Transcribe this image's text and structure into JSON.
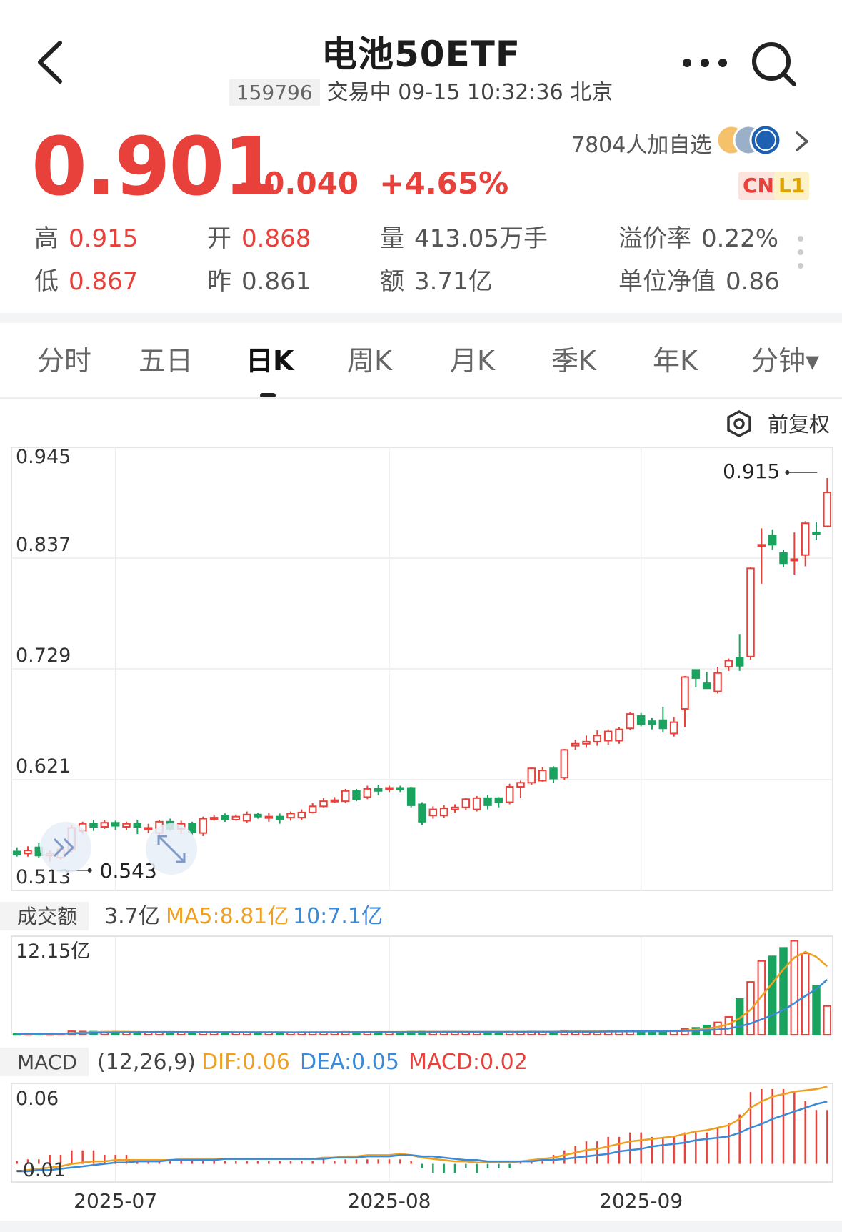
{
  "header": {
    "title": "电池50ETF",
    "code": "159796",
    "status_line": "交易中 09-15 10:32:36 北京"
  },
  "quote": {
    "price": "0.901",
    "change": "+0.040",
    "change_pct": "+4.65%",
    "followers": "7804人加自选",
    "tag_cn": "CN",
    "tag_l1": "L1",
    "stats": {
      "high_label": "高",
      "high": "0.915",
      "open_label": "开",
      "open": "0.868",
      "vol_label": "量",
      "vol": "413.05万手",
      "prem_label": "溢价率",
      "prem": "0.22%",
      "low_label": "低",
      "low": "0.867",
      "prev_label": "昨",
      "prev": "0.861",
      "amt_label": "额",
      "amt": "3.71亿",
      "nav_label": "单位净值",
      "nav": "0.86"
    }
  },
  "tabs": [
    {
      "label": "分时"
    },
    {
      "label": "五日"
    },
    {
      "label": "日K"
    },
    {
      "label": "周K"
    },
    {
      "label": "月K"
    },
    {
      "label": "季K"
    },
    {
      "label": "年K"
    },
    {
      "label": "分钟▾"
    }
  ],
  "adjust_label": "前复权",
  "colors": {
    "up": "#e8403a",
    "down": "#1aa35f",
    "ma5": "#f0a020",
    "ma10": "#3a8ad8"
  },
  "chart_data": [
    {
      "type": "candlestick",
      "title": "",
      "ylim": [
        0.513,
        0.945
      ],
      "y_ticks": [
        "0.945",
        "0.837",
        "0.729",
        "0.621",
        "0.513"
      ],
      "x_ticks": [
        "2025-07",
        "2025-08",
        "2025-09"
      ],
      "max_marker": "0.915",
      "min_marker": "0.543",
      "candles": [
        [
          0.551,
          0.548,
          0.555,
          0.546
        ],
        [
          0.549,
          0.552,
          0.556,
          0.546
        ],
        [
          0.555,
          0.547,
          0.559,
          0.545
        ],
        [
          0.547,
          0.549,
          0.552,
          0.541
        ],
        [
          0.545,
          0.553,
          0.557,
          0.543
        ],
        [
          0.553,
          0.574,
          0.577,
          0.55
        ],
        [
          0.571,
          0.578,
          0.58,
          0.568
        ],
        [
          0.578,
          0.575,
          0.582,
          0.571
        ],
        [
          0.575,
          0.579,
          0.582,
          0.573
        ],
        [
          0.579,
          0.576,
          0.581,
          0.572
        ],
        [
          0.575,
          0.578,
          0.58,
          0.572
        ],
        [
          0.578,
          0.575,
          0.582,
          0.568
        ],
        [
          0.574,
          0.574,
          0.578,
          0.569
        ],
        [
          0.569,
          0.58,
          0.582,
          0.567
        ],
        [
          0.58,
          0.573,
          0.583,
          0.571
        ],
        [
          0.573,
          0.578,
          0.581,
          0.568
        ],
        [
          0.578,
          0.57,
          0.58,
          0.567
        ],
        [
          0.569,
          0.583,
          0.585,
          0.566
        ],
        [
          0.583,
          0.584,
          0.587,
          0.581
        ],
        [
          0.586,
          0.582,
          0.588,
          0.58
        ],
        [
          0.582,
          0.585,
          0.587,
          0.581
        ],
        [
          0.581,
          0.587,
          0.59,
          0.579
        ],
        [
          0.587,
          0.585,
          0.589,
          0.583
        ],
        [
          0.585,
          0.585,
          0.589,
          0.58
        ],
        [
          0.585,
          0.582,
          0.588,
          0.578
        ],
        [
          0.584,
          0.588,
          0.59,
          0.581
        ],
        [
          0.584,
          0.589,
          0.592,
          0.582
        ],
        [
          0.589,
          0.595,
          0.598,
          0.588
        ],
        [
          0.595,
          0.6,
          0.603,
          0.594
        ],
        [
          0.6,
          0.601,
          0.604,
          0.598
        ],
        [
          0.6,
          0.61,
          0.612,
          0.598
        ],
        [
          0.61,
          0.602,
          0.612,
          0.6
        ],
        [
          0.604,
          0.612,
          0.615,
          0.602
        ],
        [
          0.612,
          0.61,
          0.616,
          0.606
        ],
        [
          0.613,
          0.613,
          0.615,
          0.609
        ],
        [
          0.613,
          0.612,
          0.615,
          0.609
        ],
        [
          0.613,
          0.596,
          0.614,
          0.594
        ],
        [
          0.597,
          0.58,
          0.599,
          0.577
        ],
        [
          0.586,
          0.592,
          0.595,
          0.583
        ],
        [
          0.586,
          0.593,
          0.596,
          0.584
        ],
        [
          0.592,
          0.594,
          0.597,
          0.589
        ],
        [
          0.594,
          0.602,
          0.603,
          0.591
        ],
        [
          0.592,
          0.603,
          0.605,
          0.59
        ],
        [
          0.603,
          0.596,
          0.606,
          0.592
        ],
        [
          0.603,
          0.599,
          0.604,
          0.594
        ],
        [
          0.599,
          0.614,
          0.617,
          0.597
        ],
        [
          0.614,
          0.618,
          0.62,
          0.603
        ],
        [
          0.618,
          0.632,
          0.633,
          0.616
        ],
        [
          0.62,
          0.63,
          0.633,
          0.619
        ],
        [
          0.632,
          0.622,
          0.634,
          0.618
        ],
        [
          0.623,
          0.65,
          0.651,
          0.621
        ],
        [
          0.654,
          0.656,
          0.66,
          0.65
        ],
        [
          0.656,
          0.658,
          0.664,
          0.652
        ],
        [
          0.658,
          0.664,
          0.669,
          0.654
        ],
        [
          0.659,
          0.668,
          0.67,
          0.655
        ],
        [
          0.659,
          0.67,
          0.672,
          0.656
        ],
        [
          0.671,
          0.685,
          0.687,
          0.669
        ],
        [
          0.683,
          0.675,
          0.686,
          0.673
        ],
        [
          0.678,
          0.675,
          0.681,
          0.67
        ],
        [
          0.679,
          0.671,
          0.692,
          0.667
        ],
        [
          0.666,
          0.677,
          0.682,
          0.663
        ],
        [
          0.69,
          0.721,
          0.722,
          0.672
        ],
        [
          0.728,
          0.72,
          0.728,
          0.711
        ],
        [
          0.715,
          0.71,
          0.726,
          0.711
        ],
        [
          0.707,
          0.725,
          0.731,
          0.705
        ],
        [
          0.731,
          0.737,
          0.739,
          0.727
        ],
        [
          0.74,
          0.732,
          0.763,
          0.727
        ],
        [
          0.741,
          0.827,
          0.828,
          0.738
        ],
        [
          0.85,
          0.85,
          0.866,
          0.812
        ],
        [
          0.859,
          0.85,
          0.865,
          0.845
        ],
        [
          0.842,
          0.832,
          0.845,
          0.828
        ],
        [
          0.835,
          0.836,
          0.862,
          0.821
        ],
        [
          0.84,
          0.871,
          0.873,
          0.829
        ],
        [
          0.862,
          0.861,
          0.872,
          0.855
        ],
        [
          0.868,
          0.901,
          0.915,
          0.867
        ]
      ]
    },
    {
      "type": "bar",
      "title": "成交额",
      "current": "3.7亿",
      "ma5_label": "MA5:8.81亿",
      "ma10_label": "10:7.1亿",
      "ylim": [
        0,
        12.15
      ],
      "y_tick": "12.15亿",
      "values": [
        0.12,
        0.13,
        0.14,
        0.12,
        0.15,
        0.45,
        0.42,
        0.4,
        0.38,
        0.35,
        0.33,
        0.32,
        0.3,
        0.3,
        0.33,
        0.3,
        0.32,
        0.35,
        0.34,
        0.32,
        0.3,
        0.3,
        0.31,
        0.3,
        0.3,
        0.31,
        0.33,
        0.33,
        0.33,
        0.32,
        0.38,
        0.36,
        0.37,
        0.36,
        0.35,
        0.36,
        0.4,
        0.42,
        0.38,
        0.37,
        0.37,
        0.38,
        0.37,
        0.36,
        0.36,
        0.39,
        0.38,
        0.42,
        0.4,
        0.4,
        0.45,
        0.42,
        0.42,
        0.43,
        0.44,
        0.45,
        0.55,
        0.5,
        0.48,
        0.5,
        0.55,
        0.75,
        0.9,
        1.2,
        1.6,
        2.3,
        4.6,
        6.8,
        9.5,
        10.1,
        11.2,
        12.1,
        10.5,
        6.3,
        3.7
      ],
      "ma5": [
        0.12,
        0.13,
        0.13,
        0.13,
        0.13,
        0.2,
        0.26,
        0.32,
        0.37,
        0.4,
        0.38,
        0.36,
        0.34,
        0.32,
        0.32,
        0.31,
        0.31,
        0.32,
        0.33,
        0.33,
        0.33,
        0.33,
        0.32,
        0.31,
        0.31,
        0.3,
        0.31,
        0.32,
        0.32,
        0.32,
        0.34,
        0.35,
        0.35,
        0.36,
        0.36,
        0.36,
        0.37,
        0.38,
        0.38,
        0.38,
        0.39,
        0.38,
        0.37,
        0.37,
        0.37,
        0.37,
        0.37,
        0.38,
        0.39,
        0.4,
        0.41,
        0.42,
        0.42,
        0.42,
        0.43,
        0.43,
        0.46,
        0.47,
        0.48,
        0.49,
        0.52,
        0.56,
        0.64,
        0.78,
        1.0,
        1.35,
        2.13,
        3.22,
        4.96,
        6.66,
        8.44,
        9.94,
        10.68,
        10.04,
        8.81
      ],
      "ma10": [
        0.12,
        0.13,
        0.13,
        0.13,
        0.13,
        0.18,
        0.22,
        0.25,
        0.28,
        0.29,
        0.31,
        0.33,
        0.35,
        0.36,
        0.36,
        0.35,
        0.34,
        0.33,
        0.33,
        0.33,
        0.32,
        0.32,
        0.32,
        0.32,
        0.32,
        0.31,
        0.31,
        0.31,
        0.32,
        0.32,
        0.32,
        0.33,
        0.33,
        0.34,
        0.34,
        0.35,
        0.35,
        0.36,
        0.36,
        0.37,
        0.37,
        0.37,
        0.37,
        0.37,
        0.37,
        0.37,
        0.37,
        0.38,
        0.38,
        0.38,
        0.39,
        0.4,
        0.4,
        0.4,
        0.41,
        0.42,
        0.43,
        0.44,
        0.45,
        0.46,
        0.47,
        0.5,
        0.54,
        0.6,
        0.68,
        0.8,
        1.09,
        1.45,
        1.98,
        2.54,
        3.18,
        4.06,
        5.0,
        5.89,
        7.1
      ]
    },
    {
      "type": "bar",
      "title": "MACD",
      "params": "(12,26,9)",
      "dif_label": "DIF:0.06",
      "dea_label": "DEA:0.05",
      "macd_label": "MACD:0.02",
      "ylim": [
        -0.01,
        0.06
      ],
      "y_ticks": [
        "0.06",
        "-0.01"
      ],
      "dif": [
        -0.006,
        -0.005,
        -0.004,
        -0.003,
        -0.002,
        0.0,
        0.001,
        0.002,
        0.002,
        0.003,
        0.003,
        0.003,
        0.003,
        0.003,
        0.003,
        0.004,
        0.004,
        0.004,
        0.004,
        0.004,
        0.004,
        0.004,
        0.004,
        0.004,
        0.004,
        0.004,
        0.004,
        0.004,
        0.005,
        0.005,
        0.006,
        0.006,
        0.007,
        0.007,
        0.007,
        0.008,
        0.007,
        0.005,
        0.004,
        0.003,
        0.002,
        0.002,
        0.001,
        0.001,
        0.001,
        0.001,
        0.002,
        0.003,
        0.004,
        0.005,
        0.007,
        0.009,
        0.011,
        0.012,
        0.014,
        0.016,
        0.018,
        0.019,
        0.02,
        0.021,
        0.022,
        0.024,
        0.026,
        0.027,
        0.029,
        0.031,
        0.036,
        0.045,
        0.05,
        0.054,
        0.056,
        0.058,
        0.059,
        0.06,
        0.062
      ],
      "dea": [
        -0.006,
        -0.006,
        -0.005,
        -0.005,
        -0.004,
        -0.003,
        -0.002,
        -0.001,
        0.0,
        0.001,
        0.001,
        0.002,
        0.002,
        0.002,
        0.003,
        0.003,
        0.003,
        0.003,
        0.003,
        0.004,
        0.004,
        0.004,
        0.004,
        0.004,
        0.004,
        0.004,
        0.004,
        0.004,
        0.004,
        0.005,
        0.005,
        0.005,
        0.006,
        0.006,
        0.006,
        0.007,
        0.007,
        0.006,
        0.006,
        0.005,
        0.004,
        0.003,
        0.003,
        0.002,
        0.002,
        0.002,
        0.002,
        0.002,
        0.003,
        0.003,
        0.004,
        0.005,
        0.006,
        0.007,
        0.008,
        0.01,
        0.011,
        0.012,
        0.014,
        0.015,
        0.016,
        0.017,
        0.019,
        0.02,
        0.021,
        0.022,
        0.025,
        0.029,
        0.032,
        0.036,
        0.039,
        0.042,
        0.045,
        0.048,
        0.05
      ]
    }
  ]
}
